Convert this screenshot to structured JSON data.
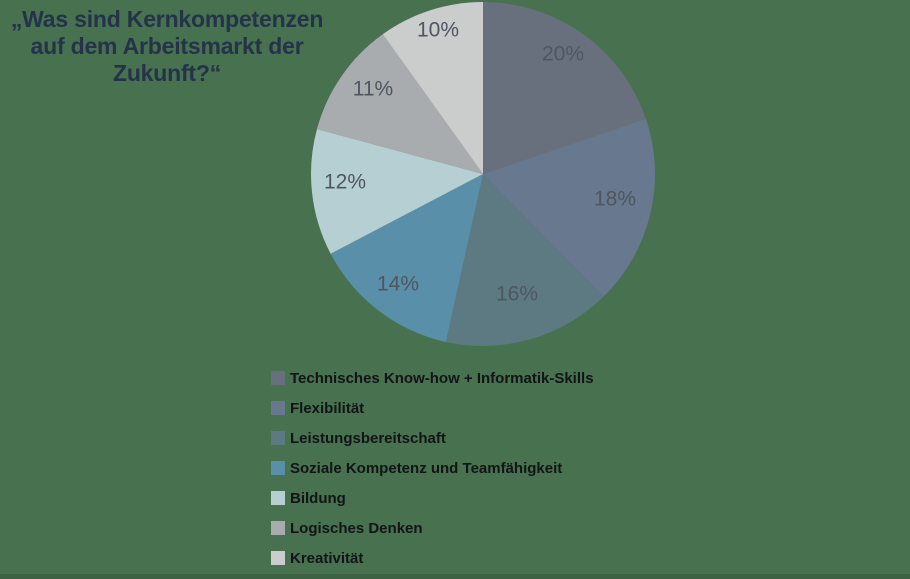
{
  "page": {
    "background_color": "#47714F",
    "bottom_strip_visible": true
  },
  "chart_data": {
    "type": "pie",
    "title_lines": [
      "„Was sind Kernkompetenzen",
      "auf dem Arbeitsmarkt der Zukunft?“"
    ],
    "title_color": "#24334A",
    "categories": [
      "Technisches Know-how + Informatik-Skills",
      "Flexibilität",
      "Leistungsbereitschaft",
      "Soziale Kompetenz und Teamfähigkeit",
      "Bildung",
      "Logisches Denken",
      "Kreativität"
    ],
    "values": [
      20,
      18,
      16,
      14,
      12,
      11,
      10
    ],
    "unit": "%",
    "colors": [
      "#69707D",
      "#68788E",
      "#5D7A83",
      "#5A8FA9",
      "#B5CFD2",
      "#A9ACAF",
      "#CBCCCC"
    ],
    "data_labels": [
      "20%",
      "18%",
      "16%",
      "14%",
      "12%",
      "11%",
      "10%"
    ],
    "label_color": "#4D5661",
    "legend_text_color": "#121416",
    "legend_position": "bottom-left",
    "start_angle_deg": 0,
    "direction": "clockwise",
    "grid": "off"
  }
}
